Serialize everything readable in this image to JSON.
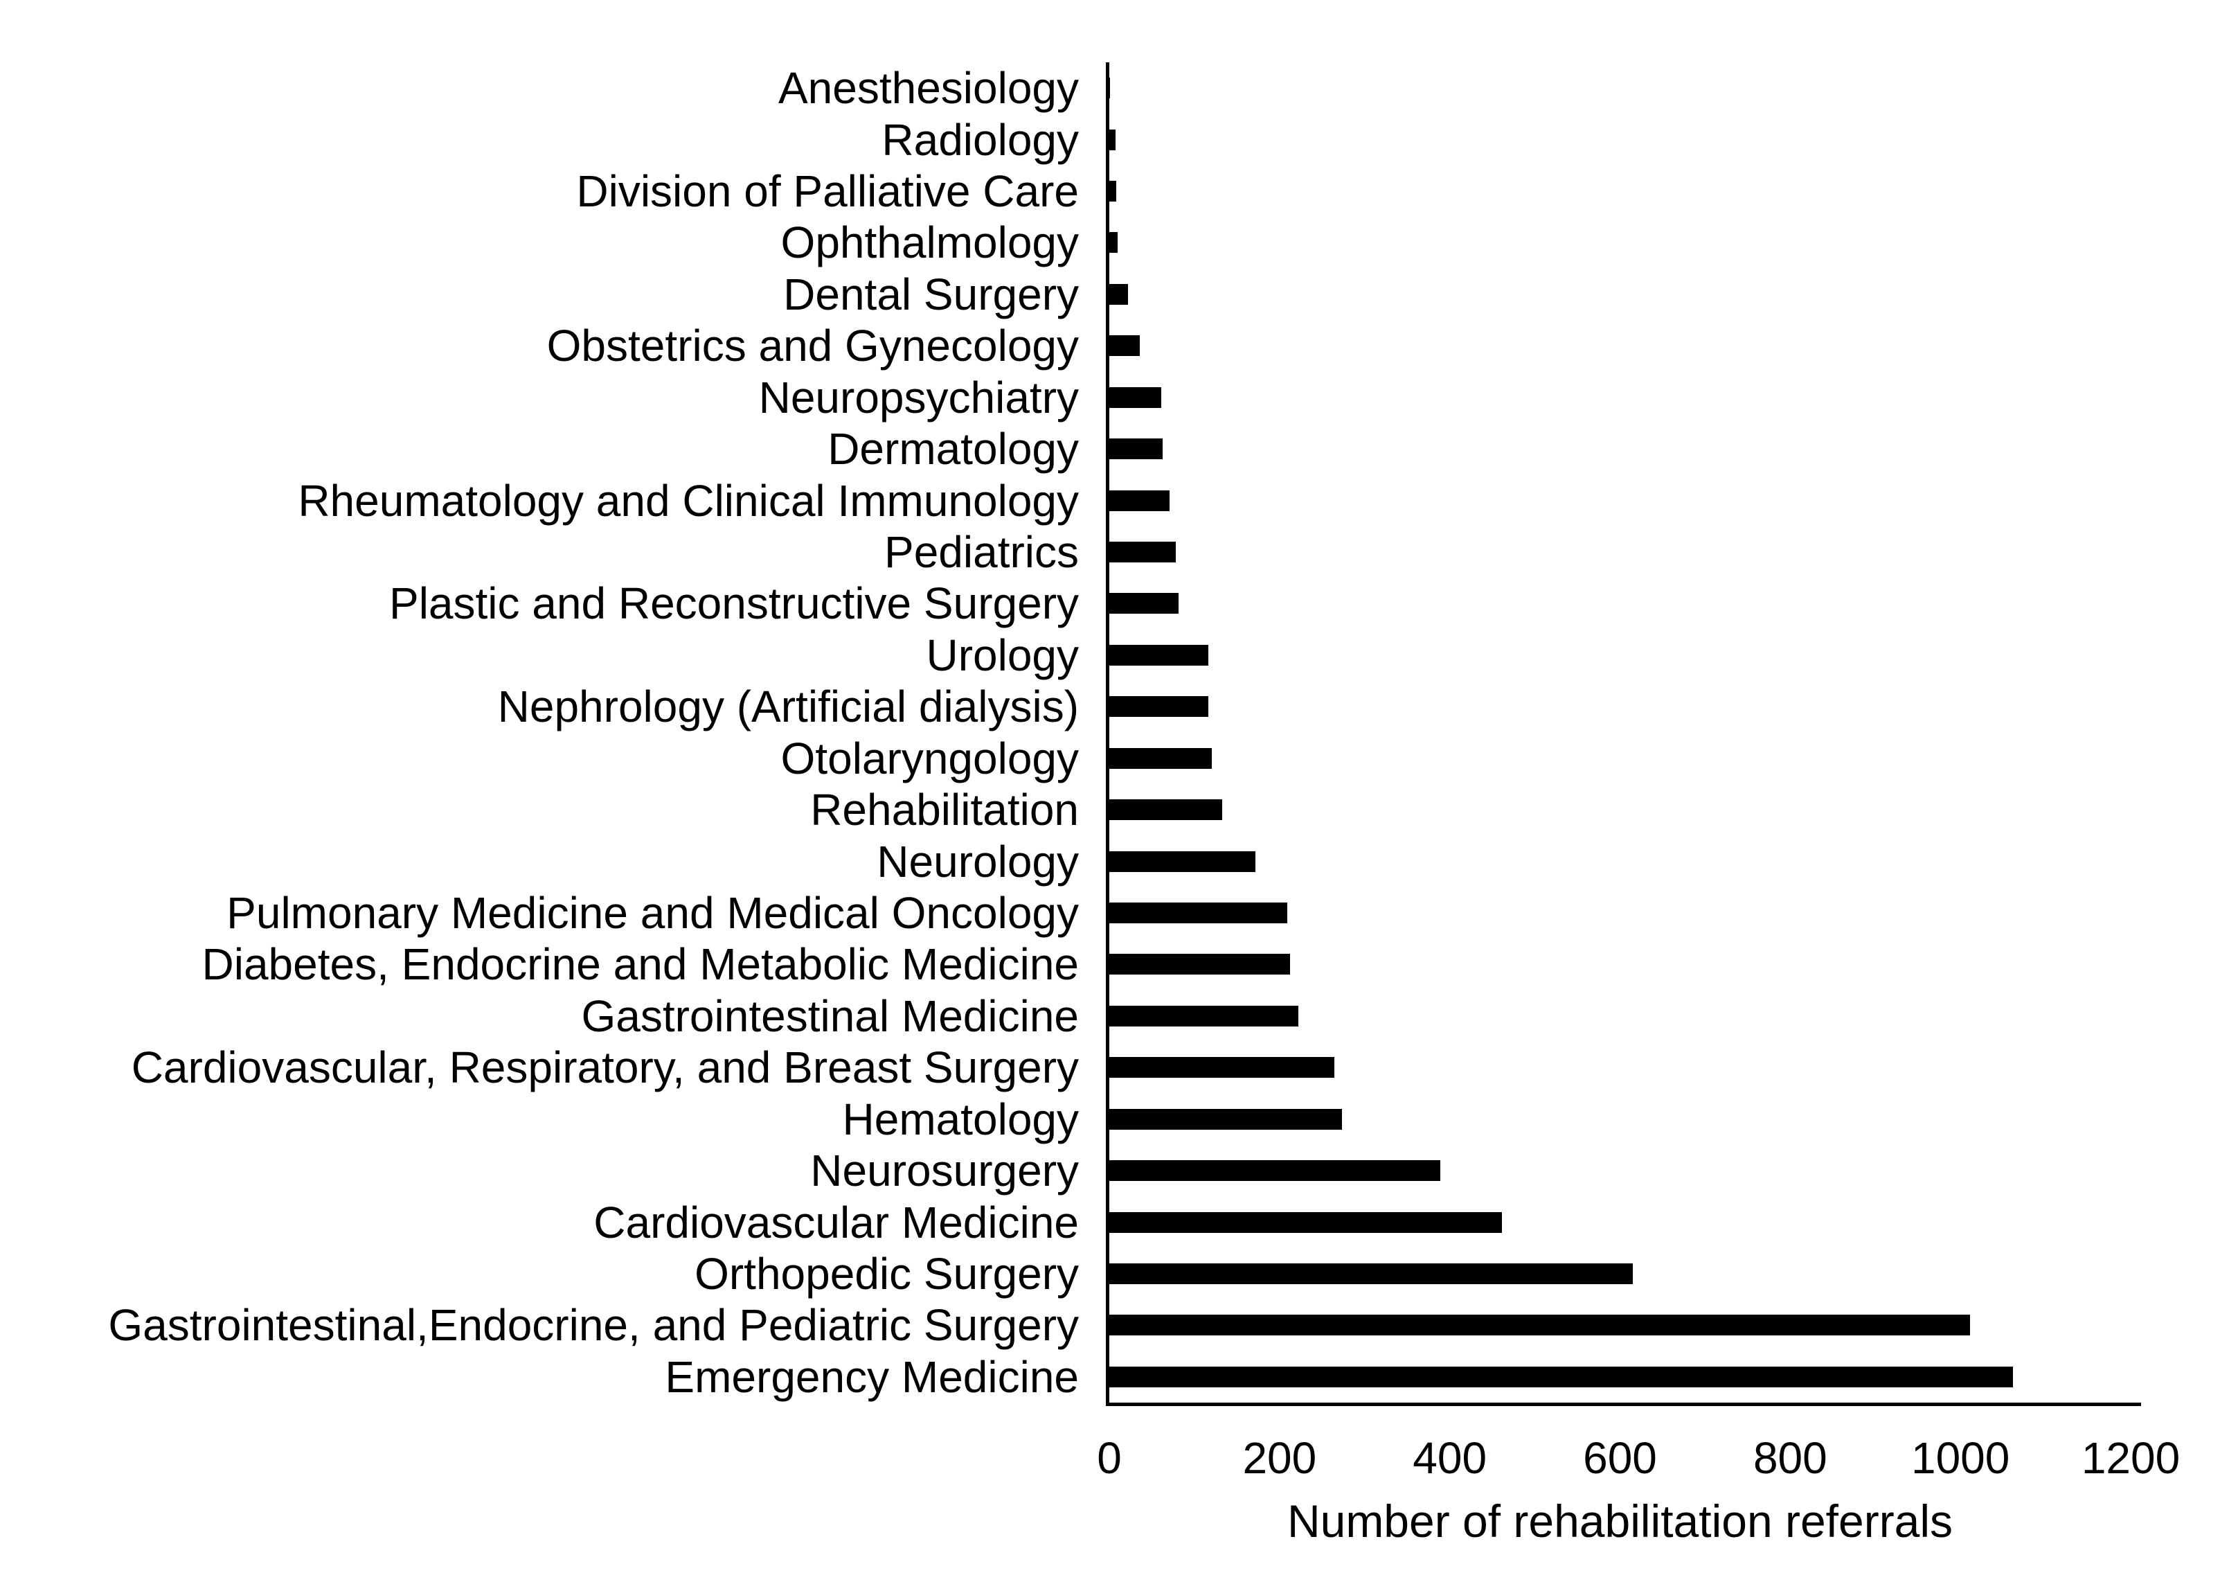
{
  "chart_data": {
    "type": "bar",
    "orientation": "horizontal",
    "title": "",
    "xlabel": "Number of rehabilitation referrals",
    "ylabel": "",
    "xlim": [
      0,
      1200
    ],
    "xticks": [
      0,
      200,
      400,
      600,
      800,
      1000,
      1200
    ],
    "grid": false,
    "legend": null,
    "bar_color": "#000000",
    "axis_color": "#000000",
    "background_color": "#ffffff",
    "categories_top_to_bottom": [
      "Anesthesiology",
      "Radiology",
      "Division of Palliative Care",
      "Ophthalmology",
      "Dental Surgery",
      "Obstetrics and Gynecology",
      "Neuropsychiatry",
      "Dermatology",
      "Rheumatology and Clinical Immunology",
      "Pediatrics",
      "Plastic and Reconstructive Surgery",
      "Urology",
      "Nephrology (Artificial dialysis)",
      "Otolaryngology",
      "Rehabilitation",
      "Neurology",
      "Pulmonary Medicine and Medical Oncology",
      "Diabetes, Endocrine and Metabolic Medicine",
      "Gastrointestinal Medicine",
      "Cardiovascular, Respiratory, and Breast Surgery",
      "Hematology",
      "Neurosurgery",
      "Cardiovascular Medicine",
      "Orthopedic Surgery",
      "Gastrointestinal,Endocrine, and Pediatric Surgery",
      "Emergency Medicine"
    ],
    "values": [
      1,
      7,
      8,
      10,
      22,
      36,
      61,
      63,
      71,
      78,
      81,
      116,
      116,
      120,
      133,
      172,
      209,
      212,
      222,
      264,
      273,
      389,
      461,
      615,
      1011,
      1062
    ]
  }
}
